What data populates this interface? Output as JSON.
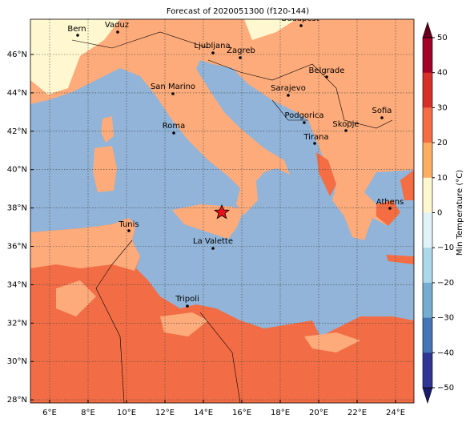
{
  "title": "Forecast of 2020051300 (f120-144)",
  "lon_ticks": [
    "6°E",
    "8°E",
    "10°E",
    "12°E",
    "14°E",
    "16°E",
    "18°E",
    "20°E",
    "22°E",
    "24°E"
  ],
  "lat_ticks": [
    "46°N",
    "44°N",
    "42°N",
    "40°N",
    "38°N",
    "36°N",
    "34°N",
    "32°N",
    "30°N",
    "28°N"
  ],
  "cities": [
    "Bern",
    "Vaduz",
    "Ljubljana",
    "Zagreb",
    "Budapest",
    "Belgrade",
    "San Marino",
    "Sarajevo",
    "Sofia",
    "Podgorica",
    "Skopje",
    "Roma",
    "Tirana",
    "Athens",
    "Tunis",
    "La Valette",
    "Tripoli"
  ],
  "colorbar": {
    "label": "Min Temperature (°C)",
    "ticks": [
      "50",
      "40",
      "30",
      "20",
      "10",
      "0",
      "−10",
      "−20",
      "−30",
      "−40",
      "−50"
    ],
    "colors": [
      "#a50026",
      "#d73027",
      "#f46d43",
      "#fdae61",
      "#fff7cf",
      "#e0f3f8",
      "#abd9e9",
      "#74add1",
      "#4575b4",
      "#313695"
    ],
    "extend_colors": [
      "#67001f",
      "#1a1a6e"
    ]
  }
}
